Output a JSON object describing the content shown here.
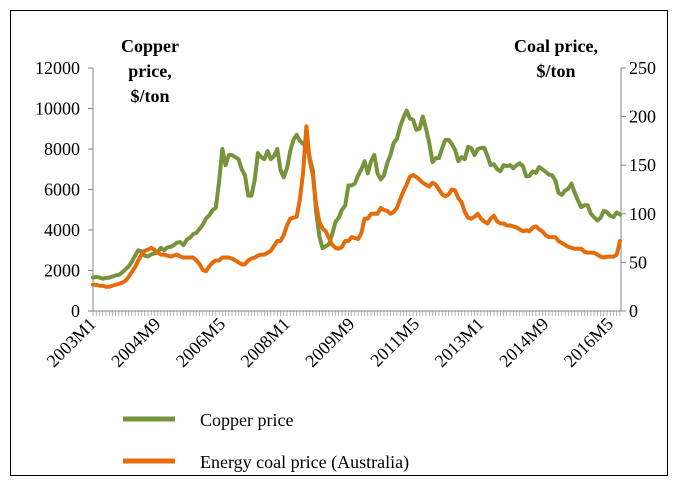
{
  "chart_data": {
    "type": "line",
    "ylabel": [
      "Copper",
      "price,",
      "$/ton"
    ],
    "y2label": [
      "Coal price,",
      "$/ton"
    ],
    "categories": [
      "2003M1",
      null,
      null,
      null,
      null,
      null,
      null,
      null,
      null,
      null,
      null,
      null,
      null,
      null,
      null,
      null,
      null,
      null,
      null,
      null,
      "2004M9",
      null,
      null,
      null,
      null,
      null,
      null,
      null,
      null,
      null,
      null,
      null,
      null,
      null,
      null,
      null,
      null,
      null,
      null,
      null,
      "2006M5",
      null,
      null,
      null,
      null,
      null,
      null,
      null,
      null,
      null,
      null,
      null,
      null,
      null,
      null,
      null,
      null,
      null,
      null,
      null,
      "2008M1",
      null,
      null,
      null,
      null,
      null,
      null,
      null,
      null,
      null,
      null,
      null,
      null,
      null,
      null,
      null,
      null,
      null,
      null,
      null,
      "2009M9",
      null,
      null,
      null,
      null,
      null,
      null,
      null,
      null,
      null,
      null,
      null,
      null,
      null,
      null,
      null,
      null,
      null,
      null,
      null,
      "2011M5",
      null,
      null,
      null,
      null,
      null,
      null,
      null,
      null,
      null,
      null,
      null,
      null,
      null,
      null,
      null,
      null,
      null,
      null,
      null,
      "2013M1",
      null,
      null,
      null,
      null,
      null,
      null,
      null,
      null,
      null,
      null,
      null,
      null,
      null,
      null,
      null,
      null,
      null,
      null,
      null,
      "2014M9",
      null,
      null,
      null,
      null,
      null,
      null,
      null,
      null,
      null,
      null,
      null,
      null,
      null,
      null,
      null,
      null,
      null,
      null,
      null,
      "2016M5",
      null,
      null,
      null
    ],
    "series": [
      {
        "name": "Copper price",
        "color": "#77933c",
        "axis": "y",
        "values": [
          1650,
          1680,
          1650,
          1600,
          1630,
          1650,
          1700,
          1760,
          1780,
          1900,
          2050,
          2200,
          2430,
          2730,
          3000,
          2950,
          2730,
          2690,
          2800,
          2840,
          2900,
          3120,
          3000,
          3140,
          3170,
          3250,
          3380,
          3400,
          3250,
          3520,
          3620,
          3800,
          3860,
          4060,
          4270,
          4580,
          4730,
          4980,
          5100,
          6400,
          8000,
          7200,
          7700,
          7700,
          7600,
          7500,
          7000,
          6700,
          5700,
          5700,
          6450,
          7800,
          7600,
          7500,
          7900,
          7500,
          7650,
          8000,
          6950,
          6600,
          7050,
          7900,
          8450,
          8700,
          8400,
          8250,
          8400,
          7600,
          6950,
          4900,
          3700,
          3100,
          3200,
          3300,
          3800,
          4400,
          4600,
          5000,
          5200,
          6200,
          6200,
          6300,
          6700,
          7000,
          7400,
          6800,
          7400,
          7700,
          6800,
          6500,
          6700,
          7300,
          7700,
          8300,
          8500,
          9100,
          9550,
          9900,
          9500,
          9450,
          8950,
          9000,
          9600,
          9000,
          8300,
          7350,
          7550,
          7550,
          8050,
          8450,
          8450,
          8250,
          7950,
          7400,
          7600,
          7500,
          8100,
          8050,
          7700,
          8000,
          8050,
          8060,
          7650,
          7200,
          7250,
          7000,
          6900,
          7200,
          7150,
          7200,
          7050,
          7200,
          7300,
          7150,
          6650,
          6670,
          6890,
          6820,
          7110,
          7000,
          6870,
          6740,
          6700,
          6450,
          5830,
          5730,
          5940,
          6040,
          6290,
          5830,
          5460,
          5130,
          5220,
          5220,
          4800,
          4630,
          4470,
          4600,
          4950,
          4870,
          4700,
          4640,
          4870,
          4760
        ]
      },
      {
        "name": "Energy coal price (Australia)",
        "color": "#e46c0a",
        "axis": "y2",
        "values": [
          27,
          27,
          26,
          26,
          25,
          25,
          26,
          27,
          28,
          29,
          31,
          35,
          40,
          45,
          52,
          58,
          62,
          63,
          65,
          63,
          60,
          58,
          58,
          57,
          56,
          57,
          58,
          56,
          55,
          55,
          55,
          55,
          52,
          48,
          42,
          41,
          46,
          50,
          52,
          52,
          55,
          55,
          55,
          54,
          52,
          50,
          48,
          48,
          52,
          54,
          55,
          57,
          58,
          58,
          60,
          62,
          67,
          72,
          72,
          78,
          88,
          95,
          96,
          97,
          115,
          143,
          190,
          155,
          140,
          110,
          92,
          85,
          82,
          75,
          68,
          65,
          64,
          66,
          72,
          72,
          76,
          75,
          74,
          80,
          95,
          95,
          100,
          100,
          100,
          106,
          104,
          103,
          100,
          102,
          106,
          115,
          123,
          130,
          138,
          140,
          138,
          135,
          132,
          130,
          128,
          132,
          130,
          125,
          120,
          118,
          120,
          125,
          124,
          116,
          112,
          102,
          96,
          95,
          97,
          100,
          95,
          92,
          90,
          95,
          98,
          92,
          90,
          90,
          88,
          88,
          87,
          86,
          84,
          82,
          83,
          82,
          86,
          87,
          84,
          82,
          78,
          76,
          76,
          76,
          72,
          70,
          68,
          66,
          65,
          64,
          64,
          64,
          61,
          60,
          60,
          60,
          58,
          56,
          55,
          56,
          56,
          56,
          58,
          72
        ]
      }
    ],
    "ylim": [
      0,
      12000
    ],
    "yticks": [
      0,
      2000,
      4000,
      6000,
      8000,
      10000,
      12000
    ],
    "y2lim": [
      0,
      250
    ],
    "y2ticks": [
      0,
      50,
      100,
      150,
      200,
      250
    ],
    "legend": "bottom"
  }
}
